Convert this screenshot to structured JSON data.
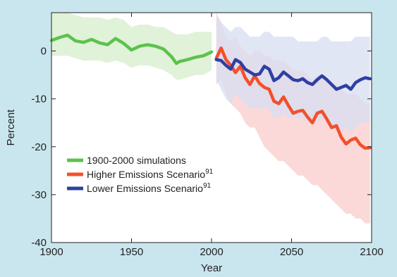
{
  "colors": {
    "page_background": "#c9e6ee",
    "plot_background": "#ffffff",
    "historical": "#5cc24c",
    "historical_band": "#d6eecb",
    "higher": "#f4502a",
    "higher_band": "#f9cccc",
    "lower": "#2f3fa3",
    "lower_band": "#d7def1"
  },
  "chart_data": {
    "type": "line",
    "title": "",
    "xlabel": "Year",
    "ylabel": "Percent",
    "xlim": [
      1900,
      2100
    ],
    "ylim": [
      -40,
      8
    ],
    "grid": false,
    "x_ticks": [
      1900,
      1950,
      2000,
      2050,
      2100
    ],
    "y_ticks": [
      0,
      -10,
      -20,
      -30,
      -40
    ],
    "legend": {
      "position": "bottom-left",
      "entries": [
        {
          "label": "1900-2000 simulations",
          "color_key": "historical"
        },
        {
          "label": "Higher Emissions Scenario",
          "sup": "91",
          "color_key": "higher"
        },
        {
          "label": "Lower Emissions Scenario",
          "sup": "91",
          "color_key": "lower"
        }
      ]
    },
    "series": [
      {
        "key": "historical",
        "x": [
          1900,
          1905,
          1910,
          1915,
          1920,
          1925,
          1930,
          1935,
          1940,
          1945,
          1950,
          1955,
          1960,
          1965,
          1970,
          1975,
          1978,
          1980,
          1985,
          1990,
          1995,
          2000
        ],
        "y": [
          2.2,
          2.8,
          3.3,
          2.1,
          1.8,
          2.4,
          1.7,
          1.3,
          2.6,
          1.6,
          0.2,
          1.0,
          1.3,
          1.0,
          0.4,
          -1.2,
          -2.6,
          -2.2,
          -1.8,
          -1.3,
          -1.0,
          -0.2
        ],
        "band_upper": [
          8,
          8,
          8,
          7.5,
          7,
          7,
          7,
          6.5,
          7,
          6.5,
          5,
          5.5,
          5.5,
          5,
          5,
          4,
          3.5,
          3.5,
          3.5,
          4,
          4,
          4
        ],
        "band_lower": [
          -1,
          -1,
          -1,
          -1.5,
          -2,
          -2,
          -2,
          -2.5,
          -2,
          -2.5,
          -3.5,
          -3,
          -3,
          -3.5,
          -4,
          -5,
          -6,
          -6,
          -5.5,
          -5,
          -5,
          -4
        ]
      },
      {
        "key": "higher",
        "x": [
          2003,
          2006,
          2009,
          2012,
          2015,
          2018,
          2021,
          2024,
          2027,
          2030,
          2033,
          2036,
          2039,
          2042,
          2045,
          2048,
          2051,
          2054,
          2057,
          2060,
          2063,
          2066,
          2069,
          2072,
          2075,
          2078,
          2081,
          2084,
          2087,
          2090,
          2093,
          2096,
          2099
        ],
        "y": [
          -1.5,
          0.6,
          -1.8,
          -3.0,
          -4.5,
          -3.2,
          -5.6,
          -7.0,
          -5.2,
          -6.8,
          -7.6,
          -8.0,
          -10.5,
          -11.0,
          -9.6,
          -11.4,
          -13.0,
          -12.6,
          -12.4,
          -13.8,
          -15.0,
          -13.0,
          -12.6,
          -14.2,
          -16.0,
          -15.6,
          -18.0,
          -19.4,
          -18.6,
          -18.2,
          -19.6,
          -20.3,
          -20.2
        ],
        "band_upper": [
          8,
          6,
          3,
          2,
          3,
          1,
          0,
          -1,
          0,
          0,
          -1,
          -1,
          -2,
          -2,
          -2,
          -3,
          -4,
          -4,
          -4,
          -5,
          -6,
          -5,
          -5,
          -6,
          -7,
          -7,
          -8,
          -9,
          -9,
          -9,
          -10,
          -11,
          -11
        ],
        "band_lower": [
          -7,
          -6,
          -9,
          -11,
          -12,
          -13,
          -15,
          -16,
          -16,
          -18,
          -20,
          -21,
          -22,
          -23,
          -23,
          -24,
          -25,
          -26,
          -26,
          -27,
          -28,
          -28,
          -29,
          -30,
          -31,
          -32,
          -33,
          -34,
          -34,
          -35,
          -35,
          -36,
          -36
        ]
      },
      {
        "key": "lower",
        "x": [
          2003,
          2006,
          2009,
          2012,
          2015,
          2018,
          2021,
          2024,
          2027,
          2030,
          2033,
          2036,
          2039,
          2042,
          2045,
          2048,
          2051,
          2054,
          2057,
          2060,
          2063,
          2066,
          2069,
          2072,
          2075,
          2078,
          2081,
          2084,
          2087,
          2090,
          2093,
          2096,
          2099
        ],
        "y": [
          -1.8,
          -2.0,
          -3.0,
          -3.8,
          -1.8,
          -2.4,
          -3.8,
          -4.4,
          -5.0,
          -4.8,
          -3.2,
          -3.8,
          -6.2,
          -5.6,
          -4.4,
          -5.2,
          -6.0,
          -6.2,
          -5.8,
          -6.6,
          -7.0,
          -6.0,
          -5.2,
          -6.0,
          -7.0,
          -8.0,
          -7.6,
          -7.2,
          -8.0,
          -6.6,
          -6.0,
          -5.6,
          -5.8
        ],
        "band_upper": [
          7,
          6,
          5,
          4,
          5,
          5,
          4,
          3,
          3,
          3,
          4,
          4,
          3,
          3,
          3,
          3,
          3,
          2,
          2,
          2,
          2,
          2,
          3,
          3,
          2,
          2,
          2,
          2,
          2,
          3,
          3,
          3,
          3
        ],
        "band_lower": [
          -6,
          -8,
          -10,
          -11,
          -9,
          -10,
          -11,
          -12,
          -12,
          -12,
          -12,
          -12,
          -14,
          -14,
          -13,
          -14,
          -14,
          -14,
          -14,
          -15,
          -15,
          -15,
          -14,
          -15,
          -16,
          -17,
          -17,
          -16,
          -17,
          -16,
          -15,
          -15,
          -15
        ]
      }
    ]
  }
}
